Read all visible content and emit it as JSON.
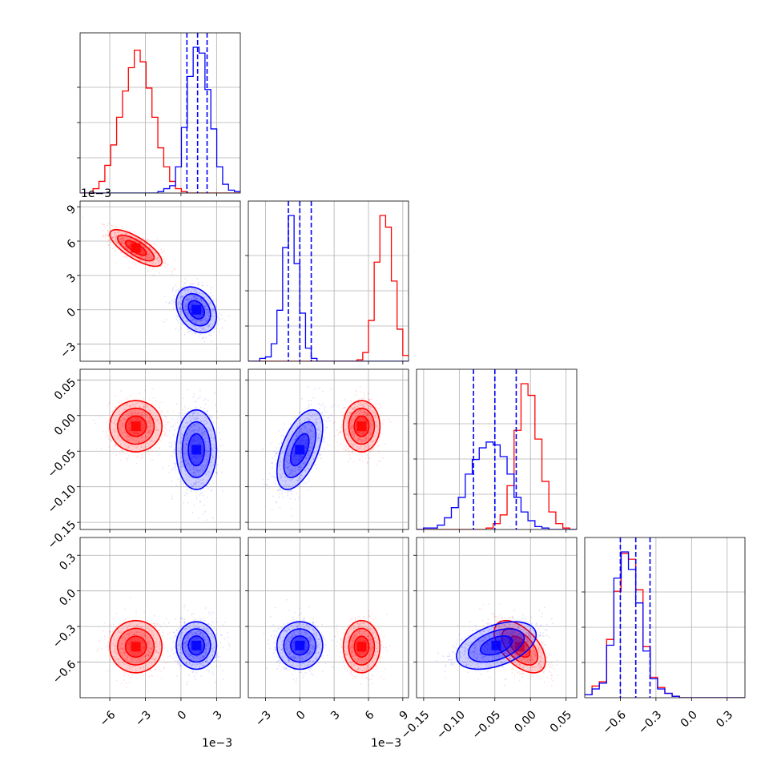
{
  "figure": {
    "offset_x": "1e−3",
    "offset_y": "1e−3",
    "offset_x2": "1e−3"
  },
  "colors": {
    "red": "#ff0000",
    "blue": "#0000ff"
  },
  "chart_data": {
    "type": "corner",
    "parameters": [
      {
        "range": [
          -8.5,
          5.0
        ],
        "ticks": [
          -6,
          -3,
          0,
          3
        ],
        "tick_labels": [
          "−6",
          "−3",
          "0",
          "3"
        ],
        "offset": "1e−3"
      },
      {
        "range": [
          -4.5,
          9.5
        ],
        "ticks": [
          -3,
          0,
          3,
          6,
          9
        ],
        "tick_labels": [
          "−3",
          "0",
          "3",
          "6",
          "9"
        ],
        "offset": "1e−3"
      },
      {
        "range": [
          -0.16,
          0.065
        ],
        "ticks": [
          -0.15,
          -0.1,
          -0.05,
          0.0,
          0.05
        ],
        "tick_labels": [
          "−0.15",
          "−0.10",
          "−0.05",
          "0.00",
          "0.05"
        ]
      },
      {
        "range": [
          -0.9,
          0.45
        ],
        "ticks": [
          -0.6,
          -0.3,
          0.0,
          0.3
        ],
        "tick_labels": [
          "−0.6",
          "−0.3",
          "0.0",
          "0.3"
        ]
      }
    ],
    "series": [
      {
        "color": "#ff0000",
        "mean": [
          -3.8,
          5.4,
          -0.015,
          -0.47
        ],
        "std": [
          1.1,
          0.8,
          0.018,
          0.11
        ],
        "corr": [
          [
            1,
            -0.75,
            0,
            0
          ],
          [
            -0.75,
            1,
            0,
            0
          ],
          [
            0,
            0,
            1,
            -0.55
          ],
          [
            0,
            0,
            -0.55,
            1
          ]
        ]
      },
      {
        "color": "#0000ff",
        "mean": [
          1.3,
          0.0,
          -0.048,
          -0.46
        ],
        "std": [
          0.85,
          1.0,
          0.028,
          0.1
        ],
        "corr": [
          [
            1,
            -0.3,
            0,
            0
          ],
          [
            -0.3,
            1,
            0.55,
            0
          ],
          [
            0,
            0.55,
            1,
            0.45
          ],
          [
            0,
            0,
            0.45,
            1
          ]
        ]
      }
    ],
    "quantiles": [
      [
        0.5,
        1.4,
        2.2
      ],
      [
        -1.0,
        0.0,
        1.0
      ],
      [
        -0.08,
        -0.05,
        -0.02
      ],
      [
        -0.6,
        -0.47,
        -0.35
      ]
    ],
    "hist1d": [
      {
        "bins": [
          -8.4,
          5.0,
          27
        ],
        "red": [
          0,
          0,
          3,
          8,
          19,
          33,
          52,
          70,
          86,
          98,
          90,
          72,
          52,
          31,
          18,
          8,
          3,
          1,
          0,
          0,
          0,
          0,
          0,
          0,
          0,
          0,
          0
        ],
        "blue": [
          0,
          0,
          0,
          0,
          0,
          0,
          0,
          0,
          0,
          0,
          0,
          0,
          0,
          1,
          3,
          5,
          18,
          45,
          80,
          100,
          96,
          71,
          44,
          18,
          6,
          2,
          1
        ]
      },
      {
        "bins": [
          -4.5,
          9.5,
          28
        ],
        "red": [
          0,
          0,
          0,
          0,
          0,
          0,
          0,
          0,
          0,
          0,
          0,
          0,
          0,
          0,
          0,
          0,
          0,
          0,
          0,
          1,
          6,
          28,
          68,
          100,
          92,
          55,
          22,
          4
        ],
        "blue": [
          0,
          0,
          2,
          3,
          12,
          35,
          78,
          100,
          67,
          33,
          9,
          2,
          0,
          0,
          0,
          0,
          0,
          0,
          0,
          0,
          0,
          0,
          0,
          0,
          0,
          0,
          0,
          0
        ]
      },
      {
        "bins": [
          -0.16,
          0.065,
          23
        ],
        "red": [
          0,
          0,
          0,
          0,
          0,
          0,
          0,
          0,
          0,
          0,
          1,
          4,
          10,
          30,
          68,
          100,
          92,
          62,
          33,
          12,
          4,
          1,
          0
        ],
        "blue": [
          0,
          1,
          1,
          3,
          8,
          15,
          22,
          38,
          48,
          56,
          60,
          58,
          50,
          38,
          22,
          12,
          6,
          2,
          1,
          0,
          0,
          0,
          0
        ]
      },
      {
        "bins": [
          -0.9,
          0.45,
          22
        ],
        "red": [
          2,
          8,
          11,
          40,
          73,
          99,
          95,
          74,
          35,
          14,
          7,
          3,
          1,
          0,
          0,
          0,
          0,
          0,
          0,
          0,
          0,
          0
        ],
        "blue": [
          2,
          6,
          10,
          36,
          82,
          100,
          88,
          65,
          32,
          13,
          6,
          3,
          1,
          0,
          0,
          0,
          0,
          0,
          0,
          0,
          0,
          0
        ]
      }
    ]
  }
}
